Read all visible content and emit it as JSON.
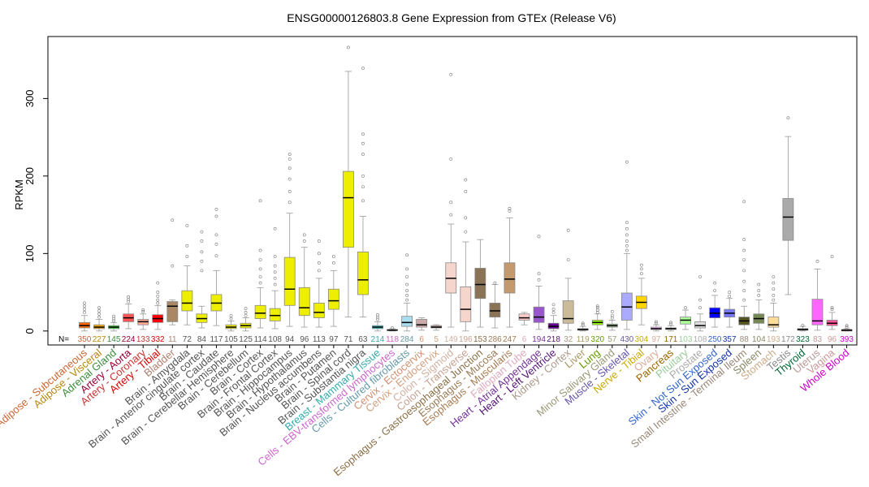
{
  "chart_data": {
    "type": "box",
    "title": "ENSG00000126803.8 Gene Expression from GTEx (Release V6)",
    "ylabel": "RPKM",
    "ylim": [
      -18,
      380
    ],
    "yticks": [
      0,
      100,
      200,
      300
    ],
    "counts_prefix": "N=",
    "grid": false,
    "tissues": [
      {
        "name": "Adipose - Subcutaneous",
        "n": "350",
        "color": "#CC6633",
        "box_color": "#FF6600",
        "stats": [
          0,
          4,
          7,
          11,
          20
        ],
        "outliers": [
          24,
          28,
          32,
          36
        ]
      },
      {
        "name": "Adipose - Visceral",
        "n": "227",
        "color": "#B8860B",
        "box_color": "#FFAA00",
        "stats": [
          0,
          3,
          5,
          8,
          15
        ],
        "outliers": [
          18,
          22,
          26,
          30
        ]
      },
      {
        "name": "Adrenal Gland",
        "n": "145",
        "color": "#3C8C3C",
        "box_color": "#33DD33",
        "stats": [
          0,
          3,
          5,
          7,
          11
        ],
        "outliers": [
          13,
          16,
          19
        ]
      },
      {
        "name": "Artery - Aorta",
        "n": "224",
        "color": "#990033",
        "box_color": "#FF5555",
        "stats": [
          3,
          12,
          17,
          22,
          35
        ],
        "outliers": [
          38,
          41,
          44
        ]
      },
      {
        "name": "Artery - Coronary",
        "n": "133",
        "color": "#CC3333",
        "box_color": "#FFAA99",
        "stats": [
          2,
          8,
          12,
          15,
          22
        ],
        "outliers": [
          25,
          27
        ]
      },
      {
        "name": "Artery - Tibial",
        "n": "332",
        "color": "#DD0000",
        "box_color": "#FF0000",
        "stats": [
          2,
          11,
          16,
          21,
          33
        ],
        "outliers": [
          36,
          40,
          45,
          50,
          62
        ]
      },
      {
        "name": "Bladder",
        "n": "11",
        "color": "#B08070",
        "box_color": "#AA8866",
        "stats": [
          8,
          12,
          32,
          38,
          40
        ],
        "outliers": [
          84,
          143
        ]
      },
      {
        "name": "Brain - Amygdala",
        "n": "72",
        "color": "#555555",
        "box_color": "#EEEE00",
        "stats": [
          8,
          26,
          36,
          52,
          84
        ],
        "outliers": [
          96,
          110,
          136
        ]
      },
      {
        "name": "Brain - Anterior cingulate cortex",
        "n": "84",
        "color": "#555555",
        "box_color": "#EEEE00",
        "stats": [
          4,
          11,
          16,
          22,
          32
        ],
        "outliers": [
          78,
          90,
          102,
          116,
          128
        ]
      },
      {
        "name": "Brain - Caudate",
        "n": "117",
        "color": "#555555",
        "box_color": "#EEEE00",
        "stats": [
          7,
          26,
          36,
          47,
          78
        ],
        "outliers": [
          97,
          112,
          124,
          148,
          157
        ]
      },
      {
        "name": "Brain - Cerebellar Hemisphere",
        "n": "105",
        "color": "#555555",
        "box_color": "#EEEE00",
        "stats": [
          0,
          3,
          5,
          8,
          13
        ],
        "outliers": [
          16,
          20
        ]
      },
      {
        "name": "Brain - Cerebellum",
        "n": "125",
        "color": "#555555",
        "box_color": "#EEEE00",
        "stats": [
          0,
          4,
          7,
          10,
          17
        ],
        "outliers": [
          20,
          24,
          29
        ]
      },
      {
        "name": "Brain - Cortex",
        "n": "114",
        "color": "#555555",
        "box_color": "#EEEE00",
        "stats": [
          4,
          16,
          23,
          33,
          56
        ],
        "outliers": [
          62,
          70,
          80,
          92,
          104,
          168
        ]
      },
      {
        "name": "Brain - Frontal Cortex",
        "n": "108",
        "color": "#555555",
        "box_color": "#EEEE00",
        "stats": [
          3,
          13,
          20,
          29,
          52
        ],
        "outliers": [
          60,
          68,
          76,
          84,
          96,
          132
        ]
      },
      {
        "name": "Brain - Hippocampus",
        "n": "94",
        "color": "#555555",
        "box_color": "#EEEE00",
        "stats": [
          6,
          33,
          54,
          95,
          152
        ],
        "outliers": [
          166,
          180,
          196,
          210,
          222,
          228
        ]
      },
      {
        "name": "Brain - Hypothalamus",
        "n": "96",
        "color": "#555555",
        "box_color": "#EEEE00",
        "stats": [
          5,
          20,
          30,
          56,
          108
        ],
        "outliers": [
          116,
          124
        ]
      },
      {
        "name": "Brain - Nucleus accumbens",
        "n": "113",
        "color": "#555555",
        "box_color": "#EEEE00",
        "stats": [
          5,
          17,
          24,
          36,
          68
        ],
        "outliers": [
          78,
          88,
          100,
          116
        ]
      },
      {
        "name": "Brain - Putamen",
        "n": "97",
        "color": "#555555",
        "box_color": "#EEEE00",
        "stats": [
          6,
          28,
          39,
          54,
          78
        ],
        "outliers": [
          88,
          96
        ]
      },
      {
        "name": "Brain - Spinal cord",
        "n": "71",
        "color": "#555555",
        "box_color": "#EEEE00",
        "stats": [
          18,
          108,
          172,
          206,
          335
        ],
        "outliers": [
          366
        ]
      },
      {
        "name": "Brain - Substantia nigra",
        "n": "63",
        "color": "#555555",
        "box_color": "#EEEE00",
        "stats": [
          18,
          47,
          66,
          102,
          148
        ],
        "outliers": [
          168,
          186,
          200,
          228,
          242,
          254,
          339
        ]
      },
      {
        "name": "Breast - Mammary Tissue",
        "n": "214",
        "color": "#33AAAA",
        "box_color": "#33CCCC",
        "stats": [
          0,
          3,
          5,
          7,
          12
        ],
        "outliers": [
          15,
          18,
          21
        ]
      },
      {
        "name": "Cells - EBV-transformed lymphocytes",
        "n": "118",
        "color": "#CC66CC",
        "box_color": "#CC66FF",
        "stats": [
          0,
          1,
          1,
          2,
          3
        ],
        "outliers": [
          4
        ]
      },
      {
        "name": "Cells - Cultured fibroblasts",
        "n": "284",
        "color": "#6699AA",
        "box_color": "#AADDEE",
        "stats": [
          0,
          6,
          11,
          19,
          36
        ],
        "outliers": [
          40,
          46,
          52,
          60,
          70,
          80,
          98
        ]
      },
      {
        "name": "Cervix - Ectocervix",
        "n": "6",
        "color": "#D09070",
        "box_color": "#CCAAAA",
        "stats": [
          1,
          5,
          8,
          15,
          17
        ],
        "outliers": []
      },
      {
        "name": "Cervix - Endocervix",
        "n": "5",
        "color": "#D0A080",
        "box_color": "#CCAAAA",
        "stats": [
          1,
          4,
          5,
          7,
          8
        ],
        "outliers": []
      },
      {
        "name": "Colon - Sigmoid",
        "n": "149",
        "color": "#D0B0A0",
        "box_color": "#F5D5CC",
        "stats": [
          5,
          49,
          68,
          88,
          138
        ],
        "outliers": [
          150,
          166,
          222,
          331
        ]
      },
      {
        "name": "Colon - Transverse",
        "n": "196",
        "color": "#C8A090",
        "box_color": "#F5D5CC",
        "stats": [
          0,
          12,
          28,
          57,
          115
        ],
        "outliers": [
          128,
          146,
          180,
          195
        ]
      },
      {
        "name": "Esophagus - Gastroesophageal Junction",
        "n": "153",
        "color": "#8B6F47",
        "box_color": "#8B7355",
        "stats": [
          5,
          42,
          60,
          81,
          118
        ],
        "outliers": []
      },
      {
        "name": "Esophagus - Mucosa",
        "n": "286",
        "color": "#9B7B57",
        "box_color": "#8B7355",
        "stats": [
          4,
          18,
          26,
          36,
          60
        ],
        "outliers": [
          62
        ]
      },
      {
        "name": "Esophagus - Muscularis",
        "n": "247",
        "color": "#A67C52",
        "box_color": "#C49A6C",
        "stats": [
          5,
          49,
          67,
          88,
          146
        ],
        "outliers": [
          155,
          158
        ]
      },
      {
        "name": "Fallopian Tube",
        "n": "6",
        "color": "#DDAABB",
        "box_color": "#FFCCCC",
        "stats": [
          8,
          14,
          17,
          22,
          24
        ],
        "outliers": []
      },
      {
        "name": "Heart - Atrial Appendage",
        "n": "194",
        "color": "#773399",
        "box_color": "#9955CC",
        "stats": [
          2,
          11,
          18,
          31,
          58
        ],
        "outliers": [
          66,
          74,
          122
        ]
      },
      {
        "name": "Heart - Left Ventricle",
        "n": "218",
        "color": "#551177",
        "box_color": "#660099",
        "stats": [
          0,
          3,
          6,
          10,
          20
        ],
        "outliers": [
          24,
          28,
          34
        ]
      },
      {
        "name": "Kidney - Cortex",
        "n": "32",
        "color": "#AA9988",
        "box_color": "#CCBB99",
        "stats": [
          1,
          10,
          16,
          39,
          68
        ],
        "outliers": [
          92,
          130
        ]
      },
      {
        "name": "Liver",
        "n": "119",
        "color": "#AA9966",
        "box_color": "#AABB66",
        "stats": [
          0,
          1,
          2,
          3,
          6
        ],
        "outliers": [
          8,
          10
        ]
      },
      {
        "name": "Lung",
        "n": "320",
        "color": "#669900",
        "box_color": "#99FF00",
        "stats": [
          2,
          8,
          11,
          14,
          22
        ],
        "outliers": [
          24,
          27,
          30,
          32
        ]
      },
      {
        "name": "Minor Salivary Gland",
        "n": "57",
        "color": "#999977",
        "box_color": "#99BB88",
        "stats": [
          1,
          5,
          7,
          9,
          14
        ],
        "outliers": [
          17,
          20,
          25
        ]
      },
      {
        "name": "Muscle - Skeletal",
        "n": "430",
        "color": "#6655AA",
        "box_color": "#AAAAFF",
        "stats": [
          2,
          14,
          31,
          49,
          100
        ],
        "outliers": [
          104,
          110,
          116,
          124,
          132,
          140,
          218
        ]
      },
      {
        "name": "Nerve - Tibial",
        "n": "304",
        "color": "#CCAA00",
        "box_color": "#FFD700",
        "stats": [
          8,
          29,
          37,
          45,
          68
        ],
        "outliers": [
          74,
          80,
          85
        ]
      },
      {
        "name": "Ovary",
        "n": "97",
        "color": "#DDAA99",
        "box_color": "#FFAAFF",
        "stats": [
          0,
          2,
          3,
          5,
          8
        ],
        "outliers": [
          10,
          12
        ]
      },
      {
        "name": "Pancreas",
        "n": "171",
        "color": "#996600",
        "box_color": "#995522",
        "stats": [
          0,
          2,
          3,
          4,
          7
        ],
        "outliers": [
          9,
          11
        ]
      },
      {
        "name": "Pituitary",
        "n": "103",
        "color": "#99CC99",
        "box_color": "#AAFF99",
        "stats": [
          2,
          9,
          14,
          18,
          27
        ],
        "outliers": [
          30
        ]
      },
      {
        "name": "Prostate",
        "n": "108",
        "color": "#AAAAAA",
        "box_color": "#DDDDDD",
        "stats": [
          0,
          4,
          7,
          12,
          22
        ],
        "outliers": [
          30,
          40,
          70
        ]
      },
      {
        "name": "Skin - Not Sun Exposed",
        "n": "250",
        "color": "#3366CC",
        "box_color": "#0000FF",
        "stats": [
          5,
          17,
          23,
          30,
          46
        ],
        "outliers": [
          52,
          62
        ]
      },
      {
        "name": "Skin - Sun Exposed",
        "n": "357",
        "color": "#1133AA",
        "box_color": "#7777FF",
        "stats": [
          5,
          18,
          23,
          28,
          42
        ],
        "outliers": [
          45,
          50
        ]
      },
      {
        "name": "Small Intestine - Terminal Ileum",
        "n": "88",
        "color": "#998877",
        "box_color": "#555522",
        "stats": [
          2,
          8,
          13,
          18,
          32
        ],
        "outliers": [
          40,
          52,
          64,
          78,
          92,
          104,
          118,
          167
        ]
      },
      {
        "name": "Spleen",
        "n": "104",
        "color": "#888866",
        "box_color": "#778855",
        "stats": [
          2,
          10,
          16,
          22,
          40
        ],
        "outliers": [
          46,
          52,
          60
        ]
      },
      {
        "name": "Stomach",
        "n": "193",
        "color": "#CCAA88",
        "box_color": "#FFDD99",
        "stats": [
          0,
          5,
          8,
          18,
          36
        ],
        "outliers": [
          40,
          46,
          54,
          62,
          70
        ]
      },
      {
        "name": "Testis",
        "n": "172",
        "color": "#888888",
        "box_color": "#AAAAAA",
        "stats": [
          47,
          117,
          147,
          171,
          251
        ],
        "outliers": [
          275
        ]
      },
      {
        "name": "Thyroid",
        "n": "323",
        "color": "#006633",
        "box_color": "#008800",
        "stats": [
          0,
          1,
          2,
          3,
          6
        ],
        "outliers": [
          7
        ]
      },
      {
        "name": "Uterus",
        "n": "83",
        "color": "#BB9999",
        "box_color": "#FF66FF",
        "stats": [
          1,
          8,
          13,
          41,
          80
        ],
        "outliers": [
          90
        ]
      },
      {
        "name": "Vagina",
        "n": "96",
        "color": "#CC9999",
        "box_color": "#FF5599",
        "stats": [
          2,
          7,
          10,
          14,
          24
        ],
        "outliers": [
          28,
          30,
          96
        ]
      },
      {
        "name": "Whole Blood",
        "n": "393",
        "color": "#CC00CC",
        "box_color": "#FF00BB",
        "stats": [
          0,
          0,
          1,
          2,
          3
        ],
        "outliers": [
          5,
          7
        ]
      }
    ]
  }
}
